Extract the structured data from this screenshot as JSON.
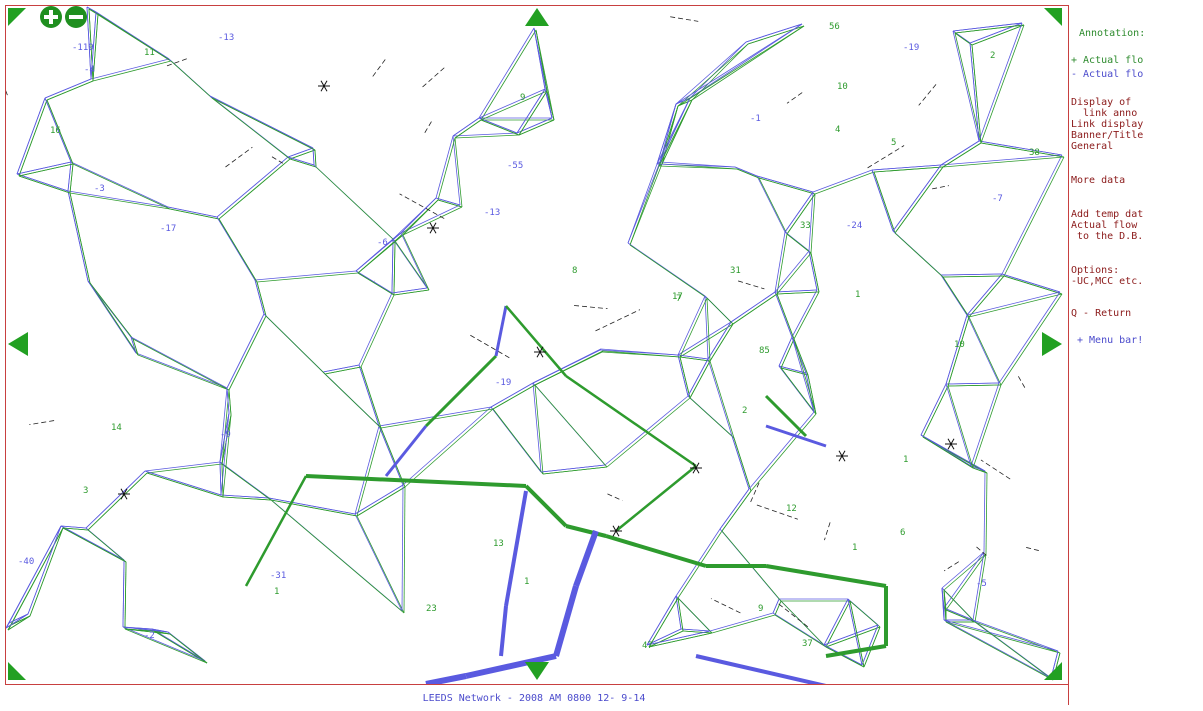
{
  "colors": {
    "green": "#2e9b2e",
    "blue": "#5a5ae0",
    "frame": "#c84040"
  },
  "icons": [
    "zoom-in-icon",
    "zoom-out-icon",
    "pan-up-arrow",
    "pan-down-arrow",
    "pan-left-arrow",
    "pan-right-arrow",
    "corner-arrow-tl",
    "corner-arrow-tr",
    "corner-arrow-bl",
    "corner-arrow-br"
  ],
  "panel": {
    "annotation_heading": "Annotation:",
    "legend_plus": "+ Actual flo",
    "legend_minus": "- Actual flo",
    "display_of": "Display of",
    "link_anno": "  link anno",
    "link_display": "Link display",
    "banner_title": "Banner/Title",
    "general": "General",
    "more_data": "More data",
    "add_temp": "Add temp dat",
    "actual_flow": "Actual flow",
    "to_db": " to the D.B.",
    "options": "Options:",
    "uc_mcc": "-UC,MCC etc.",
    "q_return": "Q - Return",
    "menu_bar": "+ Menu bar!"
  },
  "banner": "LEEDS Network - 2008 AM 0800  12- 9-14",
  "map_labels": [
    "10",
    "10",
    "1",
    "6",
    "9",
    "5",
    "-1",
    "-2",
    "2",
    "-3",
    "-5",
    "-7",
    "-13",
    "-19",
    "-17",
    "-55",
    "-119",
    "14",
    "13",
    "85",
    "31",
    "47",
    "37",
    "2",
    "4",
    "3",
    "7",
    "8",
    "9",
    "-4",
    "-6",
    "-9",
    "11",
    "-40",
    "-19",
    "33",
    "23",
    "56",
    "38",
    "17",
    "16",
    "12",
    "-31",
    "-24",
    "-13",
    "1",
    "1",
    "1",
    "1"
  ]
}
